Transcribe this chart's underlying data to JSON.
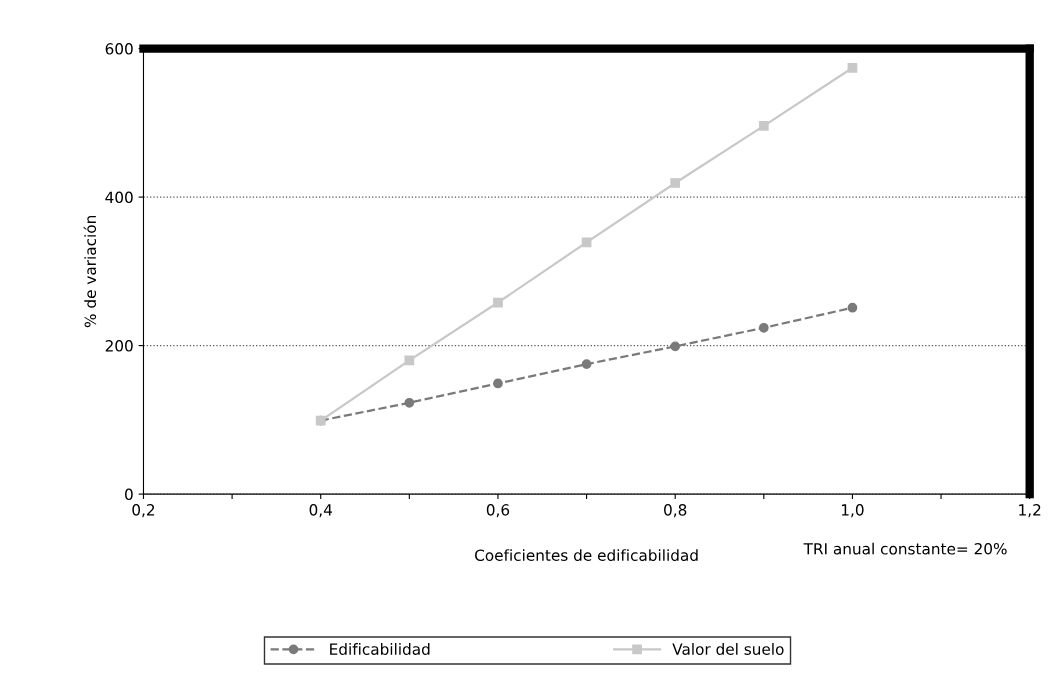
{
  "chart_data": {
    "type": "line",
    "xlabel": "Coeficientes de edificabilidad",
    "ylabel": "% de variación",
    "x": [
      0.4,
      0.5,
      0.6,
      0.7,
      0.8,
      0.9,
      1.0
    ],
    "series": [
      {
        "name": "Edificabilidad",
        "color": "#7a7a7a",
        "marker": "circle",
        "line_style": "dashed",
        "values": [
          99,
          123,
          149,
          175,
          199,
          224,
          251
        ]
      },
      {
        "name": "Valor del suelo",
        "color": "#c8c8c8",
        "marker": "square",
        "line_style": "solid",
        "values": [
          99,
          180,
          258,
          339,
          419,
          496,
          574
        ]
      }
    ],
    "xlim": [
      0.2,
      1.2
    ],
    "ylim": [
      0,
      600
    ],
    "xticks": [
      {
        "value": 0.2,
        "label": "0,2"
      },
      {
        "value": 0.3,
        "label": null
      },
      {
        "value": 0.4,
        "label": "0,4"
      },
      {
        "value": 0.5,
        "label": null
      },
      {
        "value": 0.6,
        "label": "0,6"
      },
      {
        "value": 0.7,
        "label": null
      },
      {
        "value": 0.8,
        "label": "0,8"
      },
      {
        "value": 0.9,
        "label": null
      },
      {
        "value": 1.0,
        "label": "1,0"
      },
      {
        "value": 1.1,
        "label": null
      },
      {
        "value": 1.2,
        "label": "1,2"
      }
    ],
    "yticks": [
      0,
      200,
      400,
      600
    ],
    "grid": "y",
    "legend": "bottom",
    "annotations": [
      "TRI anual constante= 20%"
    ]
  }
}
